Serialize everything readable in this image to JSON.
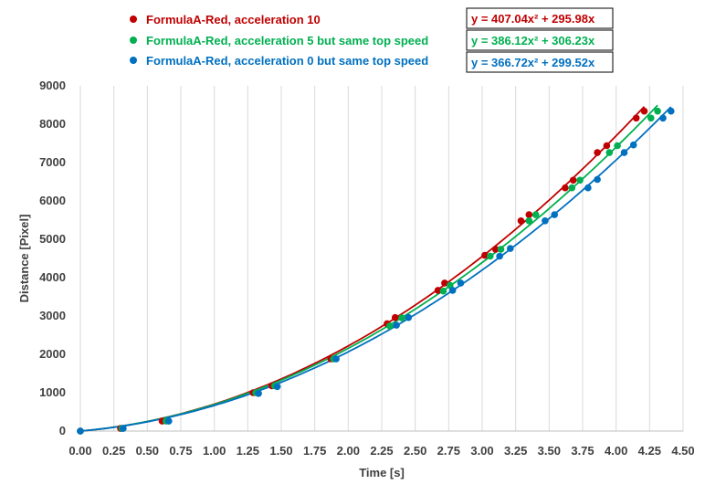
{
  "chart_data": {
    "type": "scatter",
    "xlabel": "Time [s]",
    "ylabel": "Distance [Pixel]",
    "xlim": [
      0,
      4.5
    ],
    "ylim": [
      0,
      9000
    ],
    "x_ticks": [
      "0.00",
      "0.25",
      "0.50",
      "0.75",
      "1.00",
      "1.25",
      "1.50",
      "1.75",
      "2.00",
      "2.25",
      "2.50",
      "2.75",
      "3.00",
      "3.25",
      "3.50",
      "3.75",
      "4.00",
      "4.25",
      "4.50"
    ],
    "y_ticks": [
      "0",
      "1000",
      "2000",
      "3000",
      "4000",
      "5000",
      "6000",
      "7000",
      "8000",
      "9000"
    ],
    "grid": "vertical",
    "legend_position": "top-left",
    "series": [
      {
        "name": "FormulaA-Red, acceleration 10",
        "color": "#C00000",
        "equation": "y = 407.04x² + 295.98x",
        "trend": {
          "a": 407.04,
          "b": 295.98
        },
        "x": [
          0.0,
          0.3,
          0.61,
          1.29,
          1.43,
          1.87,
          2.29,
          2.35,
          2.67,
          2.72,
          3.02,
          3.1,
          3.29,
          3.35,
          3.62,
          3.68,
          3.86,
          3.93,
          4.15,
          4.21
        ],
        "y": [
          0,
          70,
          260,
          1000,
          1180,
          1880,
          2800,
          2960,
          3670,
          3860,
          4580,
          4740,
          5480,
          5640,
          6340,
          6540,
          7260,
          7440,
          8160,
          8340
        ]
      },
      {
        "name": "FormulaA-Red, acceleration 5 but same top speed",
        "color": "#00B050",
        "equation": "y = 386.12x² + 306.23x",
        "trend": {
          "a": 386.12,
          "b": 306.23
        },
        "x": [
          0.0,
          0.31,
          0.64,
          1.31,
          1.45,
          1.89,
          2.31,
          2.4,
          2.71,
          2.76,
          3.06,
          3.14,
          3.35,
          3.4,
          3.67,
          3.73,
          3.95,
          4.01,
          4.26,
          4.31
        ],
        "y": [
          0,
          70,
          260,
          1000,
          1180,
          1880,
          2740,
          2950,
          3650,
          3800,
          4560,
          4740,
          5480,
          5640,
          6340,
          6540,
          7260,
          7440,
          8160,
          8340
        ]
      },
      {
        "name": "FormulaA-Red, acceleration 0 but same top speed",
        "color": "#0070C0",
        "equation": "y = 366.72x² + 299.52x",
        "trend": {
          "a": 366.72,
          "b": 299.52
        },
        "x": [
          0.0,
          0.32,
          0.66,
          1.33,
          1.47,
          1.91,
          2.36,
          2.45,
          2.78,
          2.84,
          3.13,
          3.21,
          3.47,
          3.54,
          3.79,
          3.86,
          4.06,
          4.13,
          4.35,
          4.41
        ],
        "y": [
          0,
          70,
          260,
          980,
          1160,
          1880,
          2760,
          2960,
          3670,
          3860,
          4560,
          4760,
          5480,
          5640,
          6340,
          6560,
          7260,
          7460,
          8160,
          8340
        ]
      }
    ]
  }
}
